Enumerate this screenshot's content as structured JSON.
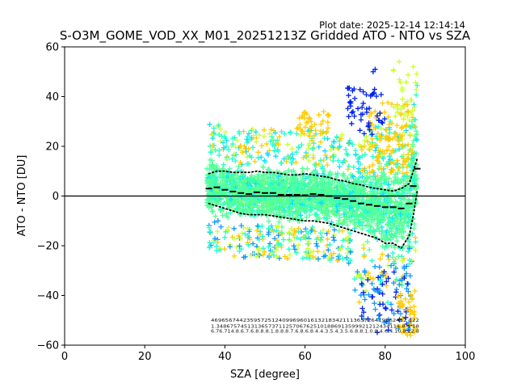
{
  "chart_data": {
    "type": "scatter",
    "title": "S-O3M_GOME_VOD_XX_M01_20251213Z Gridded ATO - NTO vs SZA",
    "plot_date": "Plot date: 2025-12-14 12:14:14",
    "xlabel": "SZA [degree]",
    "ylabel": "ATO - NTO [DU]",
    "xlim": [
      0,
      100
    ],
    "ylim": [
      -60,
      60
    ],
    "xticks": [
      "0",
      "20",
      "40",
      "60",
      "80",
      "100"
    ],
    "yticks": [
      "−60",
      "−40",
      "−20",
      "0",
      "20",
      "40",
      "60"
    ],
    "xtick_values": [
      0,
      20,
      40,
      60,
      80,
      100
    ],
    "ytick_values": [
      -60,
      -40,
      -20,
      0,
      20,
      40,
      60
    ],
    "zero_line": 0,
    "marker": "+",
    "colors": {
      "dense": "#55ff99",
      "teal": "#22ffcc",
      "cyan": "#11ddff",
      "azure": "#1199ff",
      "blue": "#0022ee",
      "yellow": "#ffcc00",
      "lime": "#ccff33",
      "green_yellow": "#88ff55",
      "mean": "#000000"
    },
    "series": [
      {
        "name": "mean",
        "style": "dashes",
        "x": [
          36,
          38,
          40,
          42,
          44,
          46,
          48,
          50,
          52,
          54,
          56,
          58,
          60,
          62,
          64,
          66,
          68,
          70,
          72,
          74,
          76,
          78,
          80,
          82,
          84,
          86,
          87,
          88
        ],
        "y": [
          3,
          3.5,
          2.5,
          1.8,
          1.2,
          0.8,
          1.5,
          1.2,
          1.2,
          0.5,
          0.5,
          0.5,
          0.3,
          0.8,
          0.5,
          0,
          -0.8,
          -1.2,
          -2,
          -3,
          -3.5,
          -4,
          -4.5,
          -4.5,
          -5,
          -3,
          4,
          11
        ]
      },
      {
        "name": "mean+std",
        "style": "dotted",
        "x": [
          36,
          38,
          40,
          42,
          44,
          46,
          48,
          50,
          52,
          54,
          56,
          58,
          60,
          62,
          64,
          66,
          68,
          70,
          72,
          74,
          76,
          78,
          80,
          82,
          84,
          86,
          87,
          88
        ],
        "y": [
          9,
          10,
          10,
          9.5,
          9.5,
          9.5,
          10,
          9.5,
          9.5,
          9,
          8.5,
          8.5,
          9,
          8.5,
          8,
          7.5,
          6.5,
          6,
          5,
          4.5,
          3.5,
          3,
          2.5,
          2,
          3,
          5,
          10,
          15
        ]
      },
      {
        "name": "mean-std",
        "style": "dotted",
        "x": [
          36,
          38,
          40,
          42,
          44,
          46,
          48,
          50,
          52,
          54,
          56,
          58,
          60,
          62,
          64,
          66,
          68,
          70,
          72,
          74,
          76,
          78,
          80,
          82,
          84,
          86,
          87,
          88
        ],
        "y": [
          -3,
          -4,
          -5,
          -6,
          -7,
          -7.5,
          -7.5,
          -7.5,
          -8,
          -8.5,
          -9,
          -9.5,
          -10,
          -10,
          -10.5,
          -11,
          -12,
          -13,
          -14,
          -15,
          -16,
          -17,
          -19,
          -19,
          -21,
          -16,
          -8,
          2
        ]
      }
    ],
    "annotation_rows": [
      "4696567442359572512409969601613218342111365726419962412 122",
      "1.34867574513136573711257067625101886913599921212434114.8.4 18",
      "6.76.714.8.6.7.6.8.8.8.1.8.8.8.7.6.8.6.8.4.4.3.5.4.3.5.6.8.8.1.0.8.4.6.4.10.8.12.8"
    ]
  }
}
